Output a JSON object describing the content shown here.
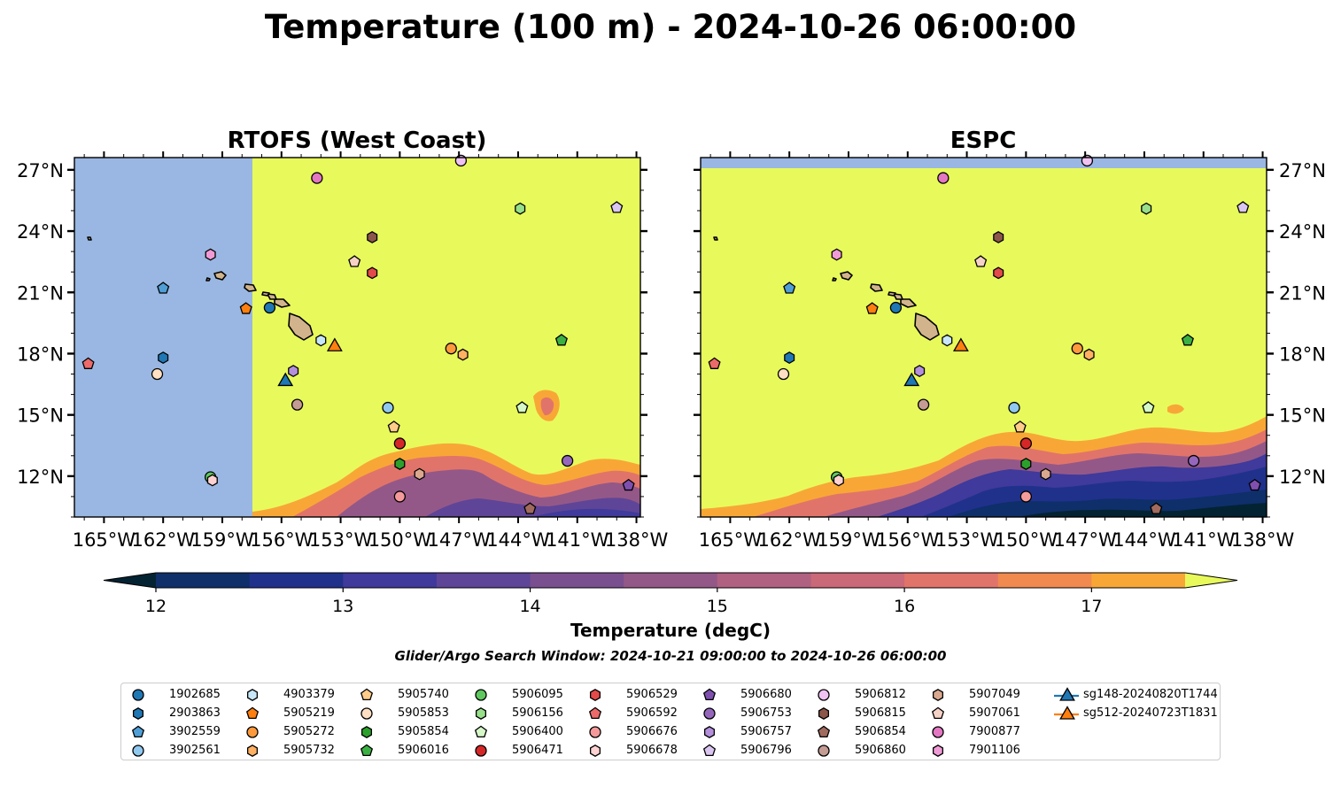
{
  "title": "Temperature (100 m) - 2024-10-26 06:00:00",
  "subtitle": "Glider/Argo Search Window: 2024-10-21 09:00:00 to 2024-10-26 06:00:00",
  "chart_data": {
    "type": "map",
    "panels": [
      {
        "title": "RTOFS (West Coast)",
        "model_domain_west_edge_lon": -157.7
      },
      {
        "title": "ESPC"
      }
    ],
    "extent": {
      "lon": [
        -166.5,
        -137.8
      ],
      "lat": [
        10.0,
        27.6
      ]
    },
    "x_ticks": [
      -165,
      -162,
      -159,
      -156,
      -153,
      -150,
      -147,
      -144,
      -141,
      -138
    ],
    "x_tick_labels": [
      "165°W",
      "162°W",
      "159°W",
      "156°W",
      "153°W",
      "150°W",
      "147°W",
      "144°W",
      "141°W",
      "138°W"
    ],
    "y_ticks": [
      12,
      15,
      18,
      21,
      24,
      27
    ],
    "y_tick_labels": [
      "12°N",
      "15°N",
      "18°N",
      "21°N",
      "24°N",
      "27°N"
    ],
    "colorbar": {
      "label": "Temperature (degC)",
      "ticks": [
        12,
        13,
        14,
        15,
        16,
        17
      ],
      "tick_labels": [
        "12",
        "13",
        "14",
        "15",
        "16",
        "17"
      ],
      "levels": [
        12.0,
        12.5,
        13.0,
        13.5,
        14.0,
        14.5,
        15.0,
        15.5,
        16.0,
        16.5,
        17.0,
        17.5
      ],
      "colors": [
        "#032333",
        "#0e2f6a",
        "#20318c",
        "#3f3a9b",
        "#5e4597",
        "#7a4f8f",
        "#945888",
        "#b06181",
        "#ca6978",
        "#e1746a",
        "#f18a4f",
        "#f8a737",
        "#f8c93f"
      ],
      "under_color": "#032333",
      "over_color": "#e8fa5b",
      "extend": "both"
    },
    "land_color": "#d2b48c",
    "missing_color": "#99b7e2",
    "series": [
      {
        "name": "1902685",
        "marker": "circle",
        "color": "#1f77b4",
        "lon": -156.6,
        "lat": 20.25
      },
      {
        "name": "2903863",
        "marker": "hexagon",
        "color": "#1f77b4",
        "lon": -162.0,
        "lat": 17.8
      },
      {
        "name": "3902559",
        "marker": "pentagon",
        "color": "#4f9fd6",
        "lon": -162.0,
        "lat": 21.2
      },
      {
        "name": "3902561",
        "marker": "circle",
        "color": "#90c8ef",
        "lon": -150.6,
        "lat": 15.35
      },
      {
        "name": "4903379",
        "marker": "hexagon",
        "color": "#c7e6f8",
        "lon": -154.0,
        "lat": 18.65
      },
      {
        "name": "5905219",
        "marker": "pentagon",
        "color": "#ff7f0e",
        "lon": -157.8,
        "lat": 20.2
      },
      {
        "name": "5905272",
        "marker": "circle",
        "color": "#ff9a3c",
        "lon": -147.4,
        "lat": 18.25
      },
      {
        "name": "5905732",
        "marker": "hexagon",
        "color": "#ffb062",
        "lon": -146.8,
        "lat": 17.95
      },
      {
        "name": "5905740",
        "marker": "pentagon",
        "color": "#ffcc8a",
        "lon": -150.3,
        "lat": 14.4
      },
      {
        "name": "5905853",
        "marker": "circle",
        "color": "#ffe0c2",
        "lon": -162.3,
        "lat": 17.0
      },
      {
        "name": "5905854",
        "marker": "hexagon",
        "color": "#2ca02c",
        "lon": -150.0,
        "lat": 12.6
      },
      {
        "name": "5906016",
        "marker": "pentagon",
        "color": "#3cb043",
        "lon": -141.8,
        "lat": 18.65
      },
      {
        "name": "5906095",
        "marker": "circle",
        "color": "#5fc75f",
        "lon": -159.6,
        "lat": 11.95
      },
      {
        "name": "5906156",
        "marker": "hexagon",
        "color": "#98df8a",
        "lon": -143.9,
        "lat": 25.1
      },
      {
        "name": "5906400",
        "marker": "pentagon",
        "color": "#d6f7c8",
        "lon": -143.8,
        "lat": 15.35
      },
      {
        "name": "5906471",
        "marker": "circle",
        "color": "#d62728",
        "lon": -150.0,
        "lat": 13.6
      },
      {
        "name": "5906529",
        "marker": "hexagon",
        "color": "#e34a4a",
        "lon": -151.4,
        "lat": 21.95
      },
      {
        "name": "5906592",
        "marker": "pentagon",
        "color": "#ec6a6a",
        "lon": -165.8,
        "lat": 17.5
      },
      {
        "name": "5906676",
        "marker": "circle",
        "color": "#f59a9a",
        "lon": -150.0,
        "lat": 11.0
      },
      {
        "name": "5906678",
        "marker": "hexagon",
        "color": "#ffd2d2",
        "lon": -159.5,
        "lat": 11.8
      },
      {
        "name": "5906680",
        "marker": "pentagon",
        "color": "#7f4fb0",
        "lon": -138.4,
        "lat": 11.55
      },
      {
        "name": "5906753",
        "marker": "circle",
        "color": "#9467bd",
        "lon": -141.5,
        "lat": 12.75
      },
      {
        "name": "5906757",
        "marker": "hexagon",
        "color": "#b48fdc",
        "lon": -155.4,
        "lat": 17.15
      },
      {
        "name": "5906796",
        "marker": "pentagon",
        "color": "#dbc6f2",
        "lon": -139.0,
        "lat": 25.15
      },
      {
        "name": "5906812",
        "marker": "circle",
        "color": "#efc2f2",
        "lon": -146.9,
        "lat": 27.45
      },
      {
        "name": "5906815",
        "marker": "hexagon",
        "color": "#8c564b",
        "lon": -151.4,
        "lat": 23.7
      },
      {
        "name": "5906854",
        "marker": "pentagon",
        "color": "#a06b5e",
        "lon": -143.4,
        "lat": 10.4
      },
      {
        "name": "5906860",
        "marker": "circle",
        "color": "#c49c94",
        "lon": -155.2,
        "lat": 15.5
      },
      {
        "name": "5907049",
        "marker": "hexagon",
        "color": "#d9a88f",
        "lon": -149.0,
        "lat": 12.1
      },
      {
        "name": "5907061",
        "marker": "pentagon",
        "color": "#f6d2c6",
        "lon": -152.3,
        "lat": 22.5
      },
      {
        "name": "7900877",
        "marker": "circle",
        "color": "#e377c2",
        "lon": -154.2,
        "lat": 26.6
      },
      {
        "name": "7901106",
        "marker": "hexagon",
        "color": "#f09bd6",
        "lon": -159.6,
        "lat": 22.85
      },
      {
        "name": "sg148-20240820T1744",
        "marker": "triangle",
        "color": "#1f77b4",
        "line": true,
        "lon": -155.8,
        "lat": 16.7
      },
      {
        "name": "sg512-20240723T1831",
        "marker": "triangle",
        "color": "#ff7f0e",
        "line": true,
        "lon": -153.3,
        "lat": 18.4
      }
    ]
  }
}
